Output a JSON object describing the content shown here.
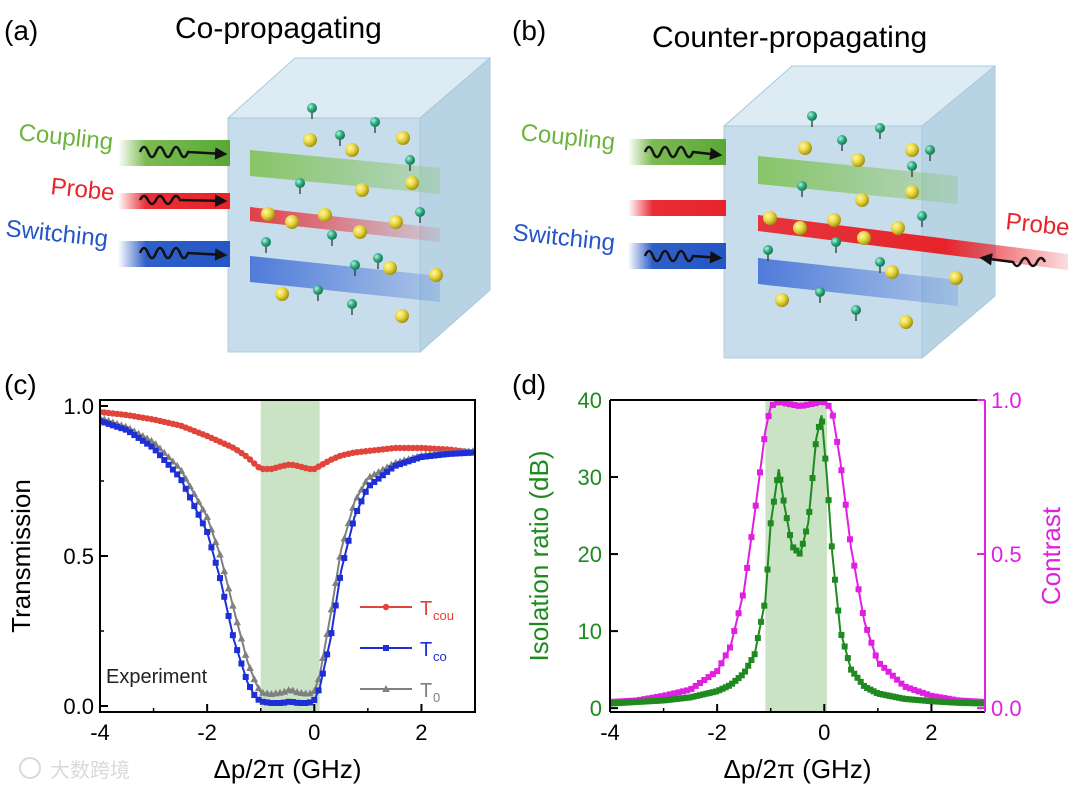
{
  "figure": {
    "panels": {
      "a": {
        "label": "(a)",
        "title": "Co-propagating",
        "beams": {
          "coupling": "Coupling",
          "probe": "Probe",
          "switching": "Switching"
        }
      },
      "b": {
        "label": "(b)",
        "title": "Counter-propagating",
        "beams": {
          "coupling": "Coupling",
          "probe": "Probe",
          "switching": "Switching"
        }
      },
      "c": {
        "label": "(c)",
        "annotation": "Experiment"
      },
      "d": {
        "label": "(d)"
      }
    },
    "watermark": "大数跨境",
    "colors": {
      "coupling": "#6cb33f",
      "probe": "#e8232a",
      "switching": "#2456c5",
      "cell": "#b9d6e6",
      "shade": "#c9e3c4",
      "t_cou": "#e0443a",
      "t_co": "#1f2fd6",
      "t_0": "#808080",
      "isolation": "#1f8a1f",
      "contrast": "#e020e0"
    }
  },
  "chart_data": [
    {
      "type": "line",
      "panel": "c",
      "xlabel": "Δp/2π (GHz)",
      "ylabel": "Transmission",
      "xlim": [
        -4,
        3
      ],
      "ylim": [
        -0.02,
        1.02
      ],
      "xticks": [
        "-4",
        "-2",
        "0",
        "2"
      ],
      "yticks": [
        "0.0",
        "0.5",
        "1.0"
      ],
      "shaded_region": [
        -1.0,
        0.1
      ],
      "x": [
        -4.0,
        -3.5,
        -3.0,
        -2.5,
        -2.0,
        -1.75,
        -1.5,
        -1.25,
        -1.1,
        -1.0,
        -0.8,
        -0.6,
        -0.45,
        -0.3,
        -0.1,
        0.0,
        0.1,
        0.3,
        0.5,
        0.75,
        1.0,
        1.5,
        2.0,
        2.5,
        3.0
      ],
      "series": [
        {
          "name": "Tcou",
          "label_main": "T",
          "label_sub": "cou",
          "marker": "circle",
          "values": [
            0.98,
            0.97,
            0.955,
            0.935,
            0.9,
            0.88,
            0.86,
            0.83,
            0.805,
            0.79,
            0.79,
            0.8,
            0.805,
            0.8,
            0.79,
            0.79,
            0.8,
            0.82,
            0.835,
            0.845,
            0.85,
            0.86,
            0.86,
            0.855,
            0.845
          ]
        },
        {
          "name": "Tco",
          "label_main": "T",
          "label_sub": "co",
          "marker": "square",
          "values": [
            0.95,
            0.92,
            0.86,
            0.76,
            0.58,
            0.42,
            0.22,
            0.08,
            0.03,
            0.015,
            0.01,
            0.01,
            0.015,
            0.01,
            0.01,
            0.02,
            0.06,
            0.22,
            0.45,
            0.63,
            0.73,
            0.8,
            0.83,
            0.84,
            0.845
          ]
        },
        {
          "name": "T0",
          "label_main": "T",
          "label_sub": "0",
          "marker": "triangle",
          "values": [
            0.96,
            0.93,
            0.88,
            0.79,
            0.63,
            0.5,
            0.32,
            0.15,
            0.08,
            0.045,
            0.04,
            0.045,
            0.055,
            0.045,
            0.04,
            0.05,
            0.1,
            0.3,
            0.52,
            0.68,
            0.76,
            0.81,
            0.835,
            0.845,
            0.85
          ]
        }
      ]
    },
    {
      "type": "line",
      "panel": "d",
      "xlabel": "Δp/2π (GHz)",
      "ylabel_left": "Isolation ratio (dB)",
      "ylabel_right": "Contrast",
      "xlim": [
        -4,
        3
      ],
      "ylim_left": [
        -0.5,
        40
      ],
      "ylim_right": [
        -0.0125,
        1.0
      ],
      "xticks": [
        "-4",
        "-2",
        "0",
        "2"
      ],
      "yticks_left": [
        "0",
        "10",
        "20",
        "30",
        "40"
      ],
      "yticks_right": [
        "0.0",
        "0.5",
        "1.0"
      ],
      "shaded_region": [
        -1.1,
        0.05
      ],
      "x": [
        -4.0,
        -3.5,
        -3.0,
        -2.5,
        -2.0,
        -1.75,
        -1.5,
        -1.3,
        -1.1,
        -1.0,
        -0.85,
        -0.75,
        -0.6,
        -0.45,
        -0.3,
        -0.15,
        -0.05,
        0.05,
        0.15,
        0.3,
        0.5,
        0.75,
        1.0,
        1.5,
        2.0,
        2.5,
        3.0
      ],
      "series": [
        {
          "name": "Isolation ratio",
          "axis": "left",
          "marker": "square",
          "values": [
            0.6,
            0.8,
            1.0,
            1.4,
            2.2,
            3.0,
            4.5,
            7.0,
            14.0,
            24.0,
            31.0,
            26.5,
            21.0,
            20.0,
            24.0,
            35.0,
            38.0,
            30.0,
            20.0,
            10.0,
            5.0,
            2.8,
            1.9,
            1.2,
            0.9,
            0.7,
            0.6
          ]
        },
        {
          "name": "Contrast",
          "axis": "right",
          "marker": "square",
          "values": [
            0.02,
            0.025,
            0.04,
            0.06,
            0.12,
            0.2,
            0.38,
            0.63,
            0.9,
            0.98,
            0.995,
            0.99,
            0.985,
            0.98,
            0.985,
            0.99,
            0.995,
            0.99,
            0.96,
            0.8,
            0.52,
            0.28,
            0.15,
            0.07,
            0.04,
            0.025,
            0.02
          ]
        }
      ]
    }
  ]
}
